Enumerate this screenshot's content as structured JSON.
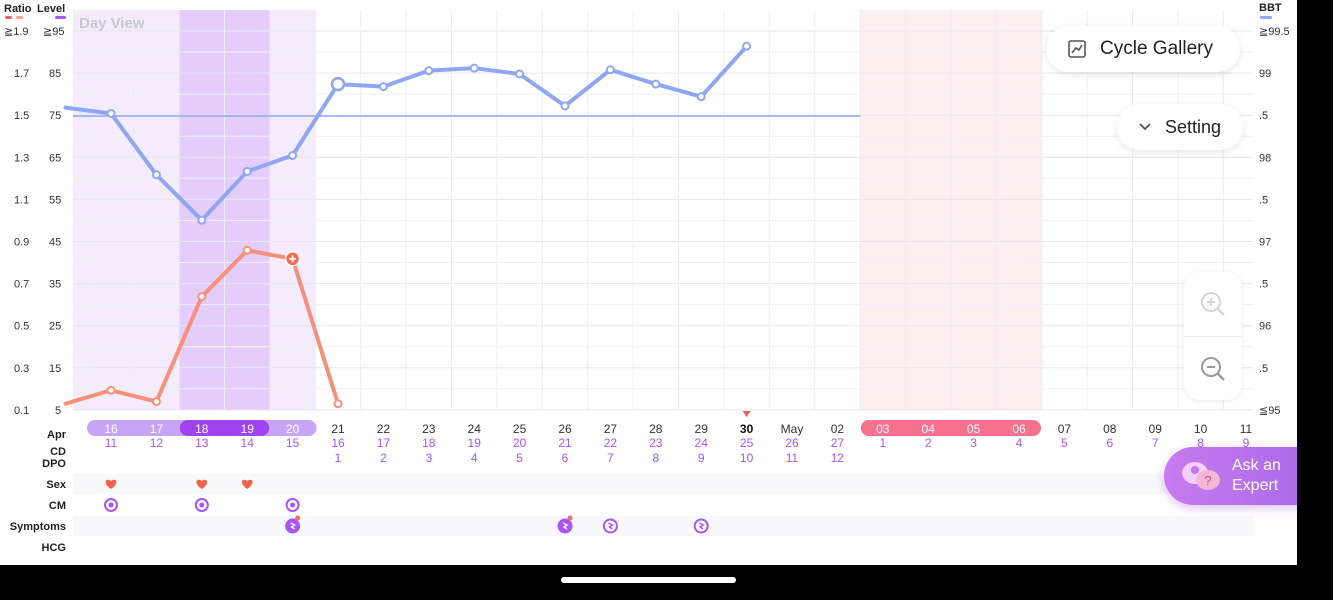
{
  "header": {
    "ratio_label": "Ratio",
    "level_label": "Level",
    "bbt_label": "BBT",
    "view_label": "Day View"
  },
  "axes": {
    "ratio_ticks": [
      "≧1.9",
      "1.7",
      "1.5",
      "1.3",
      "1.1",
      "0.9",
      "0.7",
      "0.5",
      "0.3",
      "0.1"
    ],
    "level_ticks": [
      "≧95",
      "85",
      "75",
      "65",
      "55",
      "45",
      "35",
      "25",
      "15",
      "5"
    ],
    "bbt_ticks": [
      "≧99.5",
      "99",
      ".5",
      "98",
      ".5",
      "97",
      ".5",
      "96",
      ".5",
      "≦95"
    ]
  },
  "row_labels": {
    "month": "Apr",
    "cd": "CD",
    "dpo": "DPO",
    "sex": "Sex",
    "cm": "CM",
    "symptoms": "Symptoms",
    "hcg": "HCG"
  },
  "days": [
    {
      "date": "16",
      "cd": "11",
      "dpo": ""
    },
    {
      "date": "17",
      "cd": "12",
      "dpo": ""
    },
    {
      "date": "18",
      "cd": "13",
      "dpo": ""
    },
    {
      "date": "19",
      "cd": "14",
      "dpo": ""
    },
    {
      "date": "20",
      "cd": "15",
      "dpo": ""
    },
    {
      "date": "21",
      "cd": "16",
      "dpo": "1"
    },
    {
      "date": "22",
      "cd": "17",
      "dpo": "2"
    },
    {
      "date": "23",
      "cd": "18",
      "dpo": "3"
    },
    {
      "date": "24",
      "cd": "19",
      "dpo": "4"
    },
    {
      "date": "25",
      "cd": "20",
      "dpo": "5"
    },
    {
      "date": "26",
      "cd": "21",
      "dpo": "6"
    },
    {
      "date": "27",
      "cd": "22",
      "dpo": "7"
    },
    {
      "date": "28",
      "cd": "23",
      "dpo": "8"
    },
    {
      "date": "29",
      "cd": "24",
      "dpo": "9"
    },
    {
      "date": "30",
      "cd": "25",
      "dpo": "10"
    },
    {
      "date": "May",
      "cd": "26",
      "dpo": "11"
    },
    {
      "date": "02",
      "cd": "27",
      "dpo": "12"
    },
    {
      "date": "03",
      "cd": "1",
      "dpo": ""
    },
    {
      "date": "04",
      "cd": "2",
      "dpo": ""
    },
    {
      "date": "05",
      "cd": "3",
      "dpo": ""
    },
    {
      "date": "06",
      "cd": "4",
      "dpo": ""
    },
    {
      "date": "07",
      "cd": "5",
      "dpo": ""
    },
    {
      "date": "08",
      "cd": "6",
      "dpo": ""
    },
    {
      "date": "09",
      "cd": "7",
      "dpo": ""
    },
    {
      "date": "10",
      "cd": "8",
      "dpo": ""
    },
    {
      "date": "11",
      "cd": "9",
      "dpo": ""
    }
  ],
  "today_index": 14,
  "fertile_range": [
    0,
    5
  ],
  "peak_range": [
    2,
    3
  ],
  "period_range": [
    17,
    20
  ],
  "bbt_coverline": 98.5,
  "bbt_values": [
    98.6,
    98.53,
    97.8,
    97.26,
    97.84,
    98.03,
    98.88,
    98.85,
    99.04,
    99.07,
    99.0,
    98.62,
    99.05,
    98.88,
    98.73,
    99.33
  ],
  "bbt_start_index": -1,
  "lh_levels": [
    6.5,
    9.7,
    7.0,
    32.0,
    43.0,
    41.0,
    6.5
  ],
  "lh_start_index": -1,
  "lh_peak_index": 4,
  "sex_days": [
    0,
    2,
    3
  ],
  "cm_days": [
    0,
    2,
    4
  ],
  "symptom_days": [
    4,
    10,
    11,
    13
  ],
  "colors": {
    "bbt": "#8fa6f2",
    "lh": "#f6907a",
    "fertile": "#f4ecfd",
    "peak": "#e4ccfb",
    "period": "#fdeef1",
    "accent": "#a855f7",
    "period_pill": "#f6718f",
    "fertile_pill": "#c8a4f6",
    "peak_pill": "#9e45ef"
  },
  "buttons": {
    "gallery_label": "Cycle Gallery",
    "setting_label": "Setting",
    "expert_line1": "Ask an",
    "expert_line2": "Expert"
  },
  "icons": {
    "gallery": "chart-icon",
    "setting": "chevron-down-icon",
    "zoom_in": "zoom-in-icon",
    "zoom_out": "zoom-out-icon",
    "expert": "chat-bubbles-icon",
    "sex": "heart-icon",
    "cm": "cm-icon",
    "symptom": "symptom-icon",
    "today": "today-marker-icon",
    "lh_peak": "peak-marker-icon"
  }
}
